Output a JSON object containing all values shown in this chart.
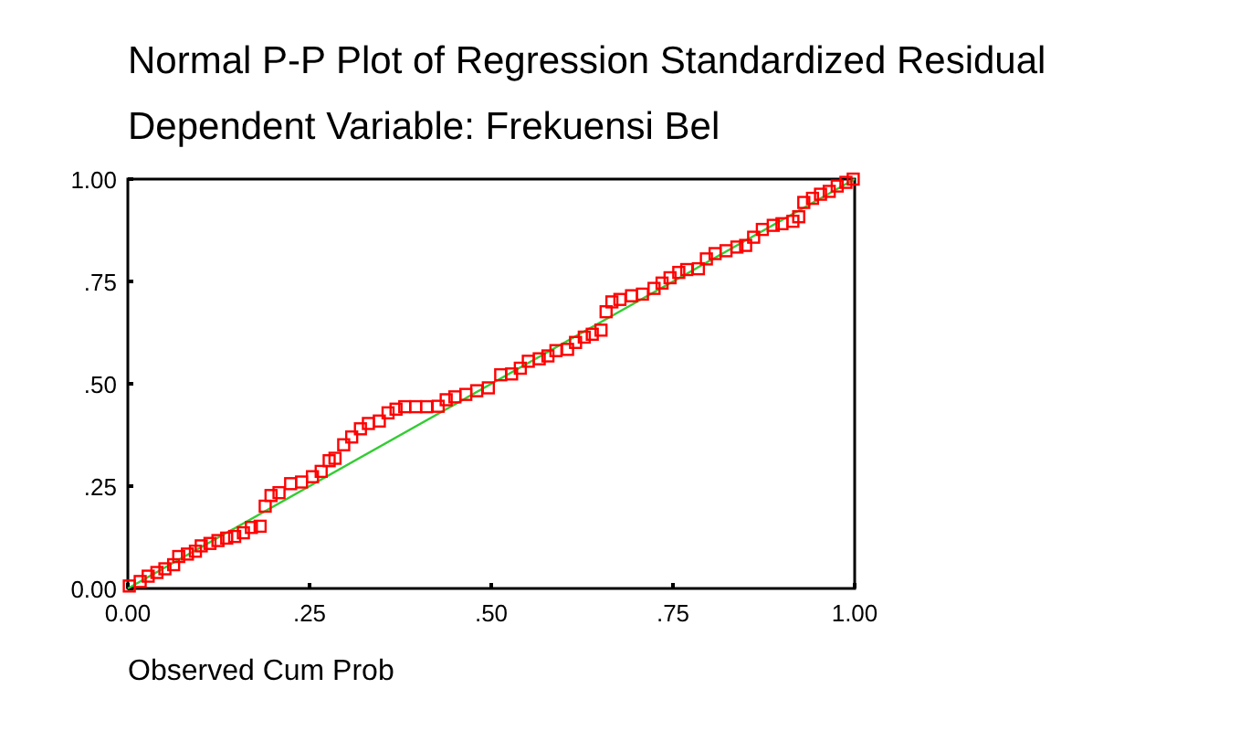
{
  "chart_data": {
    "type": "scatter",
    "title": "Normal P-P Plot of Regression Standardized Residual",
    "subtitle": "Dependent Variable: Frekuensi Bel",
    "xlabel": "Observed Cum Prob",
    "xlim": [
      0,
      1
    ],
    "ylim": [
      0,
      1
    ],
    "xticks": [
      {
        "value": 0,
        "label": "0.00"
      },
      {
        "value": 0.25,
        "label": ".25"
      },
      {
        "value": 0.5,
        "label": ".50"
      },
      {
        "value": 0.75,
        "label": ".75"
      },
      {
        "value": 1,
        "label": "1.00"
      }
    ],
    "yticks": [
      {
        "value": 0,
        "label": "0.00"
      },
      {
        "value": 0.25,
        "label": ".25"
      },
      {
        "value": 0.5,
        "label": ".50"
      },
      {
        "value": 0.75,
        "label": ".75"
      },
      {
        "value": 1,
        "label": "1.00"
      }
    ],
    "grid": false,
    "series": [
      {
        "type": "line",
        "color": "#33cc33",
        "x": [
          0,
          1
        ],
        "values": [
          0,
          1
        ]
      },
      {
        "marker": "square",
        "color": "#ff0000",
        "x": [
          0.002,
          0.017,
          0.028,
          0.04,
          0.051,
          0.063,
          0.07,
          0.082,
          0.093,
          0.101,
          0.113,
          0.124,
          0.136,
          0.147,
          0.159,
          0.17,
          0.182,
          0.189,
          0.197,
          0.208,
          0.224,
          0.239,
          0.254,
          0.266,
          0.277,
          0.285,
          0.297,
          0.308,
          0.32,
          0.331,
          0.346,
          0.358,
          0.369,
          0.381,
          0.396,
          0.411,
          0.427,
          0.438,
          0.45,
          0.465,
          0.48,
          0.496,
          0.513,
          0.528,
          0.54,
          0.551,
          0.566,
          0.578,
          0.589,
          0.605,
          0.616,
          0.628,
          0.639,
          0.651,
          0.658,
          0.666,
          0.677,
          0.693,
          0.708,
          0.724,
          0.735,
          0.746,
          0.758,
          0.769,
          0.785,
          0.796,
          0.808,
          0.823,
          0.838,
          0.85,
          0.861,
          0.873,
          0.888,
          0.9,
          0.915,
          0.923,
          0.93,
          0.942,
          0.953,
          0.965,
          0.976,
          0.988,
          0.998
        ],
        "values": [
          0.006,
          0.017,
          0.03,
          0.039,
          0.048,
          0.058,
          0.078,
          0.084,
          0.091,
          0.104,
          0.11,
          0.117,
          0.123,
          0.127,
          0.136,
          0.149,
          0.152,
          0.201,
          0.227,
          0.234,
          0.256,
          0.26,
          0.273,
          0.286,
          0.312,
          0.318,
          0.351,
          0.37,
          0.39,
          0.403,
          0.409,
          0.429,
          0.438,
          0.444,
          0.444,
          0.444,
          0.445,
          0.461,
          0.468,
          0.474,
          0.483,
          0.49,
          0.522,
          0.524,
          0.538,
          0.555,
          0.561,
          0.568,
          0.581,
          0.584,
          0.601,
          0.614,
          0.621,
          0.631,
          0.676,
          0.7,
          0.706,
          0.715,
          0.719,
          0.733,
          0.746,
          0.759,
          0.772,
          0.779,
          0.781,
          0.805,
          0.818,
          0.825,
          0.834,
          0.838,
          0.858,
          0.877,
          0.887,
          0.891,
          0.897,
          0.908,
          0.943,
          0.953,
          0.963,
          0.97,
          0.983,
          0.992,
          1.0
        ]
      }
    ]
  }
}
